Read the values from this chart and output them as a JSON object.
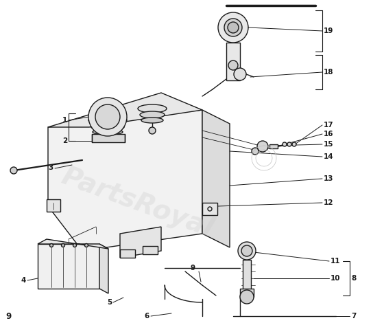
{
  "background_color": "#ffffff",
  "line_color": "#1a1a1a",
  "watermark_text": "PartsRoyal",
  "watermark_color": "#c8c8c8",
  "watermark_alpha": 0.3,
  "fig_w": 5.6,
  "fig_h": 4.7,
  "dpi": 100,
  "label_fontsize": 7.5,
  "label_fontweight": "bold"
}
